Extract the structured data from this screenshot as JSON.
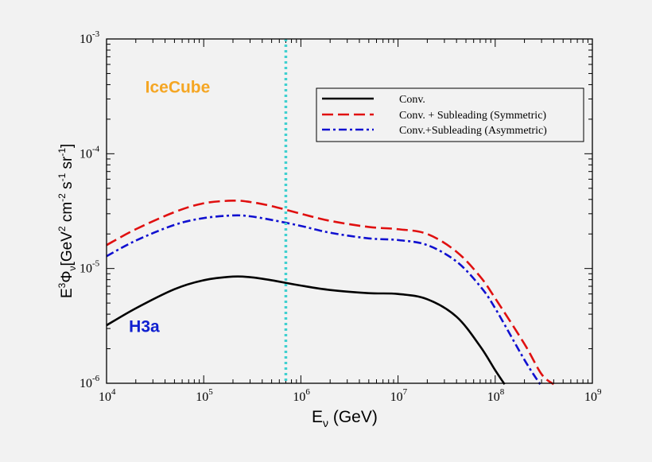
{
  "colors": {
    "background": "#f2f2f2",
    "conv": "#000000",
    "symmetric": "#e01010",
    "asymmetric": "#1010d0",
    "vline": "#40d0d0",
    "icecube": "#f5a623",
    "h3a": "#1020d0"
  },
  "chart_data": {
    "type": "line",
    "xscale": "log",
    "yscale": "log",
    "xlim": [
      10000,
      1000000000
    ],
    "ylim": [
      1e-06,
      0.001
    ],
    "xlabel": {
      "main": "E",
      "sub": "ν",
      "rest": " (GeV)"
    },
    "ylabel": {
      "e": "E",
      "e_sup": "3",
      "phi": "Φ",
      "phi_sub": "ν",
      "bracket_open": "[GeV",
      "gev_sup": "2",
      "cm": " cm",
      "cm_sup": "-2",
      "s": " s",
      "s_sup": "-1",
      "sr": " sr",
      "sr_sup": "-1",
      "bracket_close": "]"
    },
    "x_ticks": [
      {
        "value": 10000,
        "base": "10",
        "exp": "4"
      },
      {
        "value": 100000,
        "base": "10",
        "exp": "5"
      },
      {
        "value": 1000000,
        "base": "10",
        "exp": "6"
      },
      {
        "value": 10000000,
        "base": "10",
        "exp": "7"
      },
      {
        "value": 100000000,
        "base": "10",
        "exp": "8"
      },
      {
        "value": 1000000000,
        "base": "10",
        "exp": "9"
      }
    ],
    "y_ticks": [
      {
        "value": 1e-06,
        "base": "10",
        "exp": "-6"
      },
      {
        "value": 1e-05,
        "base": "10",
        "exp": "-5"
      },
      {
        "value": 0.0001,
        "base": "10",
        "exp": "-4"
      },
      {
        "value": 0.001,
        "base": "10",
        "exp": "-3"
      }
    ],
    "vertical_line": {
      "x": 700000
    },
    "annotations": [
      {
        "text": "IceCube",
        "x": 25000,
        "y": 0.00034,
        "color_key": "icecube"
      },
      {
        "text": "H3a",
        "x": 17000,
        "y": 2.8e-06,
        "color_key": "h3a"
      }
    ],
    "legend": {
      "position": "top-right"
    },
    "series": [
      {
        "name": "Conv.",
        "style": "solid",
        "color_key": "conv",
        "x": [
          10000,
          20000,
          50000,
          100000,
          200000,
          300000,
          500000,
          1000000,
          2000000,
          5000000,
          10000000,
          20000000,
          40000000,
          70000000,
          100000000,
          125000000
        ],
        "y": [
          3.2e-06,
          4.5e-06,
          6.6e-06,
          7.9e-06,
          8.5e-06,
          8.4e-06,
          7.9e-06,
          7.1e-06,
          6.5e-06,
          6.1e-06,
          6e-06,
          5.4e-06,
          3.8e-06,
          2.1e-06,
          1.3e-06,
          9.8e-07
        ]
      },
      {
        "name": "Conv. + Subleading (Symmetric)",
        "style": "dashed",
        "color_key": "symmetric",
        "x": [
          10000,
          20000,
          50000,
          100000,
          200000,
          300000,
          500000,
          1000000,
          2000000,
          5000000,
          10000000,
          20000000,
          40000000,
          70000000,
          100000000,
          200000000,
          300000000,
          400000000
        ],
        "y": [
          1.6e-05,
          2.2e-05,
          3.1e-05,
          3.7e-05,
          3.9e-05,
          3.8e-05,
          3.5e-05,
          3e-05,
          2.6e-05,
          2.3e-05,
          2.2e-05,
          2e-05,
          1.4e-05,
          8.5e-06,
          5.5e-06,
          2.2e-06,
          1.2e-06,
          9.8e-07
        ]
      },
      {
        "name": "Conv.+Subleading (Asymmetric)",
        "style": "dashdot",
        "color_key": "asymmetric",
        "x": [
          10000,
          20000,
          50000,
          100000,
          200000,
          300000,
          500000,
          1000000,
          2000000,
          5000000,
          10000000,
          20000000,
          40000000,
          70000000,
          100000000,
          200000000,
          290000000
        ],
        "y": [
          1.28e-05,
          1.75e-05,
          2.4e-05,
          2.75e-05,
          2.9e-05,
          2.85e-05,
          2.65e-05,
          2.35e-05,
          2.05e-05,
          1.83e-05,
          1.77e-05,
          1.6e-05,
          1.15e-05,
          7e-06,
          4.5e-06,
          1.6e-06,
          9.8e-07
        ]
      }
    ]
  }
}
